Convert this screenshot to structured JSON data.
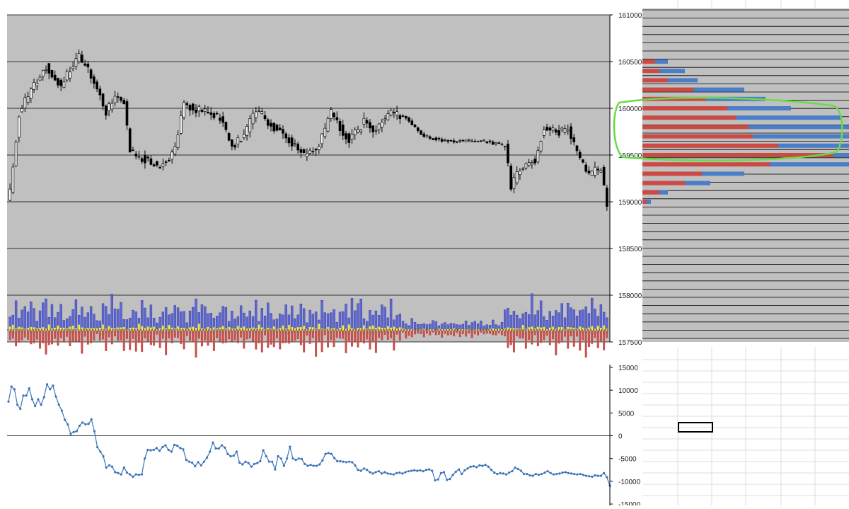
{
  "colors": {
    "plot_bg": "#c0c0c0",
    "candle_up": "#ffffff",
    "candle_down": "#000000",
    "vol_blue": "#5d68d8",
    "vol_yellow": "#ecec58",
    "vol_red": "#c8504a",
    "profile_red": "#cc4a44",
    "profile_blue": "#4a7ec8",
    "line": "#3b74b8",
    "highlight": "#66dd44",
    "sheet_grid": "#d8dde6"
  },
  "chart_data": [
    {
      "type": "candlestick",
      "name": "price",
      "ylim": [
        157500,
        161000
      ],
      "yticks": [
        "161000",
        "160500",
        "160000",
        "159500",
        "159000",
        "158500",
        "158000",
        "157500"
      ],
      "grid": true,
      "n_bars": 200,
      "anchor_closes": [
        {
          "bar": 0,
          "close": 159100
        },
        {
          "bar": 3,
          "close": 159950
        },
        {
          "bar": 8,
          "close": 160250
        },
        {
          "bar": 12,
          "close": 160450
        },
        {
          "bar": 17,
          "close": 160250
        },
        {
          "bar": 20,
          "close": 160400
        },
        {
          "bar": 23,
          "close": 160550
        },
        {
          "bar": 28,
          "close": 160300
        },
        {
          "bar": 32,
          "close": 159950
        },
        {
          "bar": 35,
          "close": 160150
        },
        {
          "bar": 38,
          "close": 160050
        },
        {
          "bar": 40,
          "close": 159550
        },
        {
          "bar": 45,
          "close": 159450
        },
        {
          "bar": 50,
          "close": 159380
        },
        {
          "bar": 55,
          "close": 159550
        },
        {
          "bar": 58,
          "close": 160050
        },
        {
          "bar": 65,
          "close": 159950
        },
        {
          "bar": 70,
          "close": 159900
        },
        {
          "bar": 74,
          "close": 159600
        },
        {
          "bar": 78,
          "close": 159700
        },
        {
          "bar": 82,
          "close": 160000
        },
        {
          "bar": 86,
          "close": 159850
        },
        {
          "bar": 92,
          "close": 159700
        },
        {
          "bar": 98,
          "close": 159500
        },
        {
          "bar": 103,
          "close": 159600
        },
        {
          "bar": 107,
          "close": 159950
        },
        {
          "bar": 113,
          "close": 159650
        },
        {
          "bar": 118,
          "close": 159850
        },
        {
          "bar": 122,
          "close": 159750
        },
        {
          "bar": 126,
          "close": 159950
        },
        {
          "bar": 132,
          "close": 159900
        },
        {
          "bar": 138,
          "close": 159700
        },
        {
          "bar": 145,
          "close": 159650
        },
        {
          "bar": 152,
          "close": 159650
        },
        {
          "bar": 158,
          "close": 159650
        },
        {
          "bar": 165,
          "close": 159600
        },
        {
          "bar": 167,
          "close": 159150
        },
        {
          "bar": 170,
          "close": 159350
        },
        {
          "bar": 175,
          "close": 159450
        },
        {
          "bar": 178,
          "close": 159800
        },
        {
          "bar": 183,
          "close": 159750
        },
        {
          "bar": 186,
          "close": 159800
        },
        {
          "bar": 190,
          "close": 159450
        },
        {
          "bar": 193,
          "close": 159300
        },
        {
          "bar": 197,
          "close": 159350
        },
        {
          "bar": 199,
          "close": 158950
        }
      ]
    },
    {
      "type": "bar",
      "name": "volume",
      "series": [
        {
          "color": "blue",
          "level_pattern": [
            20,
            30,
            35,
            18,
            38,
            25,
            28,
            32,
            22,
            16
          ]
        },
        {
          "color": "yellow",
          "level_pattern": [
            8,
            12,
            6,
            14,
            9,
            5,
            10,
            7,
            11,
            4
          ]
        },
        {
          "color": "red",
          "level_pattern": [
            22,
            14,
            30,
            18,
            26,
            12,
            20,
            16,
            24,
            10
          ]
        }
      ],
      "scale": "relative"
    },
    {
      "type": "bar",
      "name": "profile",
      "orientation": "horizontal",
      "levels": [
        160500,
        160450,
        160400,
        160350,
        160300,
        160250,
        160200,
        160150,
        160100,
        160050,
        160000,
        159950,
        159900,
        159850,
        159800,
        159750,
        159700,
        159650,
        159600,
        159550,
        159500,
        159450,
        159400,
        159350,
        159300,
        159250,
        159200,
        159150,
        159100,
        159050,
        159000
      ],
      "series": [
        {
          "color": "red",
          "values": [
            3,
            0,
            4,
            0,
            6,
            0,
            12,
            0,
            15,
            0,
            20,
            0,
            22,
            0,
            25,
            0,
            26,
            0,
            32,
            0,
            45,
            0,
            30,
            0,
            14,
            0,
            10,
            0,
            4,
            0,
            1
          ]
        },
        {
          "color": "blue",
          "values": [
            3,
            0,
            6,
            0,
            7,
            0,
            12,
            0,
            14,
            0,
            15,
            0,
            25,
            0,
            28,
            0,
            30,
            0,
            35,
            0,
            45,
            0,
            28,
            0,
            10,
            0,
            6,
            0,
            2,
            0,
            1
          ]
        }
      ],
      "scale": "relative"
    },
    {
      "type": "line",
      "name": "cumulative",
      "ylim": [
        -15000,
        15000
      ],
      "yticks": [
        "15000",
        "10000",
        "5000",
        "0",
        "-5000",
        "-10000",
        "-15000"
      ],
      "values": [
        7500,
        10800,
        10200,
        6800,
        5900,
        8800,
        8800,
        10400,
        8000,
        6500,
        8000,
        6800,
        8500,
        11300,
        10200,
        11000,
        8600,
        6800,
        5500,
        3500,
        2500,
        400,
        800,
        1000,
        2200,
        2900,
        2500,
        2600,
        3600,
        1000,
        -2500,
        -3500,
        -4500,
        -7000,
        -6500,
        -6800,
        -8000,
        -8200,
        -8500,
        -7000,
        -8100,
        -8500,
        -9000,
        -8500,
        -8600,
        -8500,
        -5000,
        -3100,
        -3200,
        -3100,
        -2700,
        -3300,
        -2500,
        -2100,
        -3100,
        -3500,
        -2000,
        -2200,
        -2700,
        -3000,
        -5300,
        -5700,
        -5900,
        -6700,
        -5800,
        -6500,
        -5700,
        -4800,
        -3500,
        -1500,
        -2800,
        -2800,
        -2100,
        -2600,
        -4000,
        -4500,
        -4400,
        -3500,
        -5900,
        -6300,
        -5700,
        -6000,
        -6800,
        -6200,
        -6000,
        -5600,
        -3200,
        -4500,
        -5700,
        -5700,
        -7400,
        -4500,
        -5000,
        -6600,
        -5000,
        -2400,
        -5000,
        -5300,
        -5000,
        -5100,
        -6200,
        -6600,
        -6400,
        -6600,
        -6600,
        -6300,
        -5400,
        -4000,
        -3800,
        -4000,
        -4900,
        -5600,
        -5600,
        -5700,
        -5800,
        -5700,
        -5800,
        -6500,
        -7500,
        -7700,
        -7200,
        -7500,
        -8000,
        -8300,
        -8000,
        -7800,
        -8300,
        -8000,
        -8300,
        -8400,
        -8500,
        -8200,
        -8100,
        -8300,
        -8000,
        -7800,
        -7700,
        -7600,
        -7700,
        -7600,
        -7800,
        -7500,
        -7400,
        -7700,
        -9800,
        -9600,
        -8200,
        -8000,
        -9700,
        -9500,
        -8600,
        -7900,
        -7400,
        -8400,
        -7600,
        -7200,
        -6800,
        -6700,
        -6900,
        -6500,
        -6600,
        -6400,
        -6800,
        -7500,
        -8100,
        -8400,
        -8200,
        -8300,
        -8500,
        -8100,
        -7800,
        -7000,
        -7300,
        -7700,
        -8400,
        -8400,
        -8700,
        -8800,
        -8400,
        -8600,
        -8400,
        -8100,
        -7800,
        -8200,
        -8500,
        -8400,
        -8300,
        -8100,
        -8000,
        -8200,
        -8300,
        -8400,
        -8500,
        -8400,
        -8600,
        -8800,
        -8900,
        -9000,
        -8700,
        -8800,
        -8800,
        -8200,
        -9100,
        -11000
      ]
    }
  ]
}
